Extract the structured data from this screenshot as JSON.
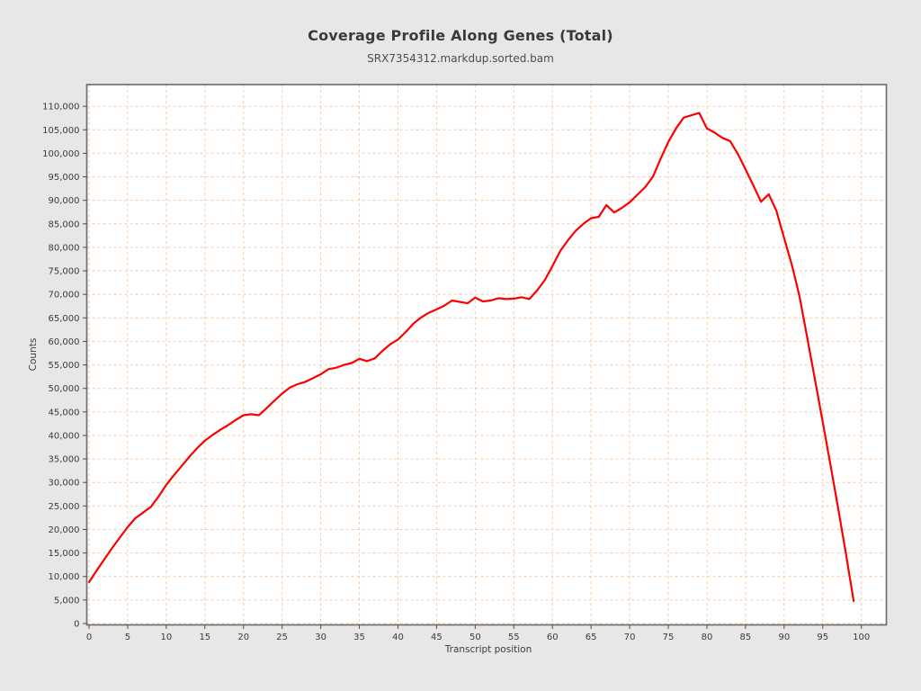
{
  "header": {
    "title": "Coverage Profile Along Genes (Total)",
    "subtitle": "SRX7354312.markdup.sorted.bam"
  },
  "chart_data": {
    "type": "line",
    "title": "Coverage Profile Along Genes (Total)",
    "subtitle": "SRX7354312.markdup.sorted.bam",
    "xlabel": "Transcript position",
    "ylabel": "Counts",
    "grid": true,
    "legend": "none",
    "x": [
      0,
      1,
      2,
      3,
      4,
      5,
      6,
      7,
      8,
      9,
      10,
      11,
      12,
      13,
      14,
      15,
      16,
      17,
      18,
      19,
      20,
      21,
      22,
      23,
      24,
      25,
      26,
      27,
      28,
      29,
      30,
      31,
      32,
      33,
      34,
      35,
      36,
      37,
      38,
      39,
      40,
      41,
      42,
      43,
      44,
      45,
      46,
      47,
      48,
      49,
      50,
      51,
      52,
      53,
      54,
      55,
      56,
      57,
      58,
      59,
      60,
      61,
      62,
      63,
      64,
      65,
      66,
      67,
      68,
      69,
      70,
      71,
      72,
      73,
      74,
      75,
      76,
      77,
      78,
      79,
      80,
      81,
      82,
      83,
      84,
      85,
      86,
      87,
      88,
      89,
      90,
      91,
      92,
      93,
      94,
      95,
      96,
      97,
      98,
      99
    ],
    "series": [
      {
        "name": "SRX7354312.markdup.sorted.bam",
        "values": [
          8800,
          11300,
          13700,
          16100,
          18300,
          20500,
          22400,
          23600,
          24800,
          27000,
          29500,
          31600,
          33500,
          35500,
          37300,
          38900,
          40100,
          41200,
          42200,
          43300,
          44300,
          44500,
          44300,
          45800,
          47400,
          48900,
          50200,
          50900,
          51400,
          52200,
          53000,
          54100,
          54400,
          55000,
          55400,
          56300,
          55800,
          56400,
          58000,
          59400,
          60400,
          62000,
          63800,
          65100,
          66100,
          66800,
          67600,
          68700,
          68400,
          68100,
          69300,
          68500,
          68700,
          69200,
          69000,
          69100,
          69400,
          69000,
          70800,
          73000,
          76000,
          79200,
          81500,
          83500,
          85000,
          86200,
          86500,
          89000,
          87400,
          88400,
          89600,
          91200,
          92800,
          95000,
          98800,
          102400,
          105300,
          107600,
          108100,
          108600,
          105300,
          104400,
          103300,
          102600,
          99900,
          96600,
          93200,
          89700,
          91300,
          87800,
          82000,
          76300,
          69500,
          60700,
          51800,
          42800,
          33700,
          24500,
          14900,
          4800
        ]
      }
    ],
    "xlim": [
      -0.35,
      103.2
    ],
    "ylim": [
      0,
      114800
    ],
    "x_ticks": [
      0,
      5,
      10,
      15,
      20,
      25,
      30,
      35,
      40,
      45,
      50,
      55,
      60,
      65,
      70,
      75,
      80,
      85,
      90,
      95,
      100
    ],
    "y_ticks": [
      0,
      5000,
      10000,
      15000,
      20000,
      25000,
      30000,
      35000,
      40000,
      45000,
      50000,
      55000,
      60000,
      65000,
      70000,
      75000,
      80000,
      85000,
      90000,
      95000,
      100000,
      105000,
      110000
    ],
    "colors": {
      "line": "#fb0000",
      "grid": "#f7cba5",
      "plot_background": "#ffffff",
      "page_background": "#e7e7e7",
      "panel_border": "#707070",
      "tick_text": "#3b3b3b"
    }
  }
}
